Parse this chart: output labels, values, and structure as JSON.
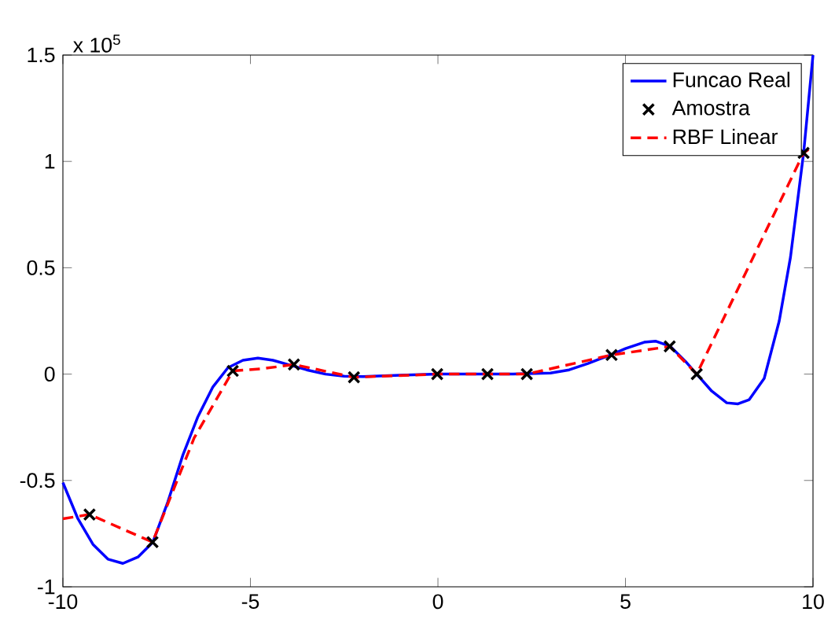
{
  "chart_data": {
    "type": "line",
    "xlim": [
      -10,
      10
    ],
    "ylim": [
      -1,
      1.5
    ],
    "xticks": [
      -10,
      -5,
      0,
      5,
      10
    ],
    "yticks": [
      -1,
      -0.5,
      0,
      0.5,
      1,
      1.5
    ],
    "annotations": [
      "x 10$^{5}$"
    ],
    "legend": "top right",
    "grid": false,
    "series": [
      {
        "name": "Funcao Real",
        "color": "#0000ff",
        "line_style": "solid",
        "marker": "none",
        "x": [
          -10,
          -9.6,
          -9.2,
          -8.8,
          -8.4,
          -8.0,
          -7.6,
          -7.2,
          -6.8,
          -6.4,
          -6.0,
          -5.6,
          -5.2,
          -4.8,
          -4.4,
          -4.0,
          -3.5,
          -3.0,
          -2.5,
          -2.0,
          -1.0,
          0,
          1,
          2,
          3,
          3.5,
          4,
          4.6,
          5,
          5.5,
          5.8,
          6.2,
          6.6,
          6.9,
          7.3,
          7.7,
          8.0,
          8.3,
          8.7,
          9.1,
          9.4,
          9.75,
          10
        ],
        "values": [
          -0.51,
          -0.68,
          -0.8,
          -0.87,
          -0.89,
          -0.86,
          -0.79,
          -0.6,
          -0.38,
          -0.2,
          -0.06,
          0.03,
          0.065,
          0.075,
          0.065,
          0.045,
          0.02,
          0.0,
          -0.01,
          -0.012,
          -0.005,
          0,
          0,
          0,
          0.005,
          0.02,
          0.05,
          0.09,
          0.12,
          0.15,
          0.155,
          0.13,
          0.06,
          0,
          -0.08,
          -0.135,
          -0.14,
          -0.12,
          -0.02,
          0.25,
          0.55,
          1.04,
          1.5
        ]
      },
      {
        "name": "Amostra",
        "type": "scatter",
        "color": "#000000",
        "marker": "cross",
        "x": [
          -9.29,
          -7.61,
          -5.47,
          -3.84,
          -2.24,
          -0.02,
          1.32,
          2.37,
          4.63,
          6.18,
          6.9,
          9.75
        ],
        "values": [
          -0.66,
          -0.79,
          0.015,
          0.045,
          -0.015,
          0,
          0,
          0,
          0.09,
          0.13,
          0,
          1.04
        ]
      },
      {
        "name": "RBF Linear",
        "color": "#ff0000",
        "line_style": "dashed",
        "marker": "none",
        "x": [
          -10,
          -9.29,
          -7.61,
          -6.5,
          -5.47,
          -4.7,
          -3.84,
          -2.24,
          -0.02,
          1.32,
          2.37,
          4.63,
          6.18,
          6.9,
          9.75,
          10
        ],
        "values": [
          -0.68,
          -0.66,
          -0.79,
          -0.3,
          0.015,
          0.025,
          0.045,
          -0.015,
          0,
          0,
          0,
          0.09,
          0.13,
          0,
          1.04,
          1.07
        ]
      }
    ]
  }
}
